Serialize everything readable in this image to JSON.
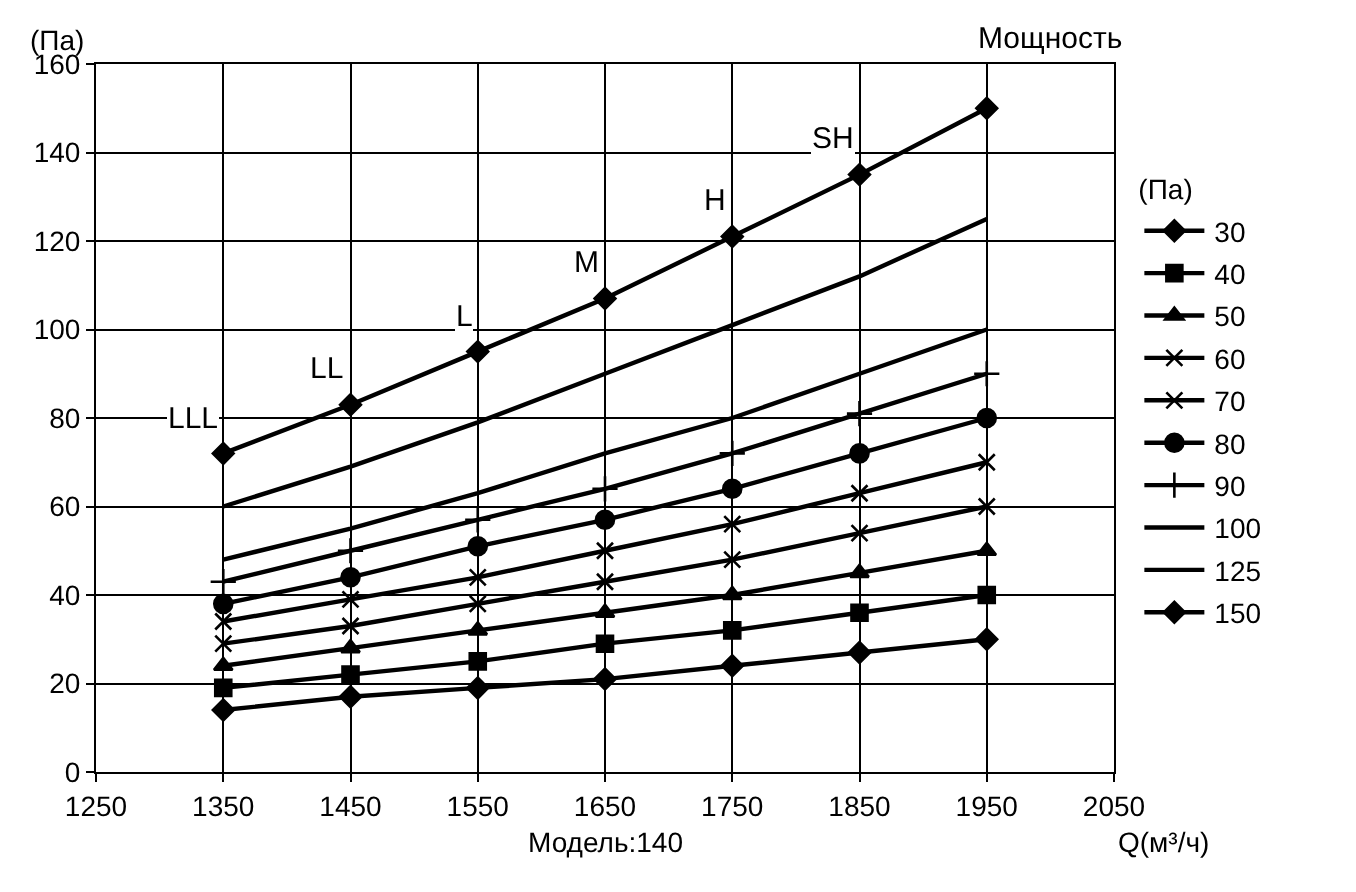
{
  "chart_data": {
    "type": "line",
    "title": "Мощность",
    "xlabel": "Q(м³/ч)",
    "ylabel": "(Па)",
    "legend_title": "(Па)",
    "x": [
      1350,
      1450,
      1550,
      1650,
      1750,
      1850,
      1950
    ],
    "xlim": [
      1250,
      2050
    ],
    "xticks": [
      1250,
      1350,
      1450,
      1550,
      1650,
      1750,
      1850,
      1950,
      2050
    ],
    "ylim": [
      0,
      160
    ],
    "yticks": [
      0,
      20,
      40,
      60,
      80,
      100,
      120,
      140,
      160
    ],
    "grid": true,
    "legend": "right",
    "series": [
      {
        "name": "30",
        "color": "#000000",
        "marker": "diamond",
        "values": [
          14,
          17,
          19,
          21,
          24,
          27,
          30
        ]
      },
      {
        "name": "40",
        "color": "#000000",
        "marker": "square",
        "values": [
          19,
          22,
          25,
          29,
          32,
          36,
          40
        ]
      },
      {
        "name": "50",
        "color": "#000000",
        "marker": "triangle",
        "values": [
          24,
          28,
          32,
          36,
          40,
          45,
          50
        ]
      },
      {
        "name": "60",
        "color": "#000000",
        "marker": "cross",
        "values": [
          29,
          33,
          38,
          43,
          48,
          54,
          60
        ]
      },
      {
        "name": "70",
        "color": "#000000",
        "marker": "cross",
        "values": [
          34,
          39,
          44,
          50,
          56,
          63,
          70
        ]
      },
      {
        "name": "80",
        "color": "#000000",
        "marker": "circle",
        "values": [
          38,
          44,
          51,
          57,
          64,
          72,
          80
        ]
      },
      {
        "name": "90",
        "color": "#000000",
        "marker": "plus",
        "values": [
          43,
          50,
          57,
          64,
          72,
          81,
          90
        ]
      },
      {
        "name": "100",
        "color": "#000000",
        "marker": "none",
        "values": [
          48,
          55,
          63,
          72,
          80,
          90,
          100
        ]
      },
      {
        "name": "125",
        "color": "#000000",
        "marker": "none",
        "values": [
          60,
          69,
          79,
          90,
          101,
          112,
          125
        ]
      },
      {
        "name": "150",
        "color": "#000000",
        "marker": "diamond",
        "values": [
          72,
          83,
          95,
          107,
          121,
          135,
          150
        ]
      }
    ],
    "annotations": [
      {
        "text": "LLL",
        "x": 1350,
        "y": 72
      },
      {
        "text": "LL",
        "x": 1450,
        "y": 83
      },
      {
        "text": "L",
        "x": 1550,
        "y": 95
      },
      {
        "text": "M",
        "x": 1650,
        "y": 107
      },
      {
        "text": "H",
        "x": 1750,
        "y": 121
      },
      {
        "text": "SH",
        "x": 1850,
        "y": 135
      },
      "Модель:140"
    ]
  }
}
